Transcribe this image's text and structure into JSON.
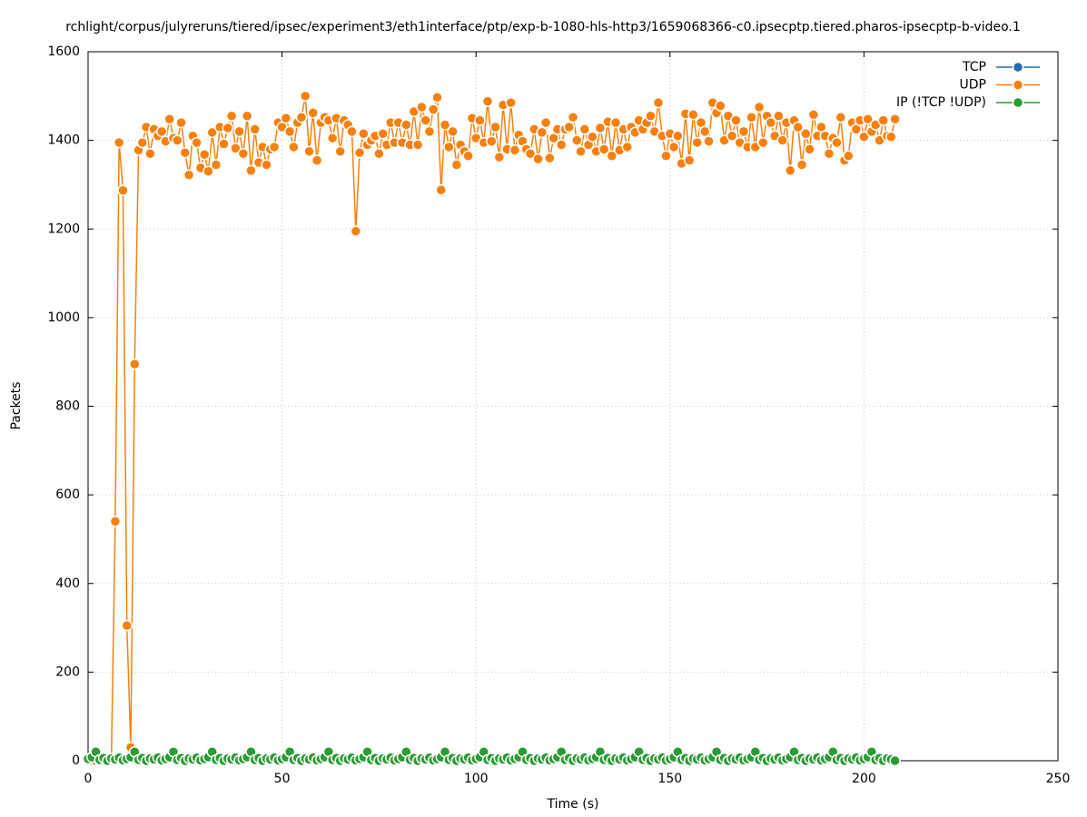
{
  "chart_data": {
    "type": "line",
    "title": "rchlight/corpus/julyreruns/tiered/ipsec/experiment3/eth1interface/ptp/exp-b-1080-hls-http3/1659068366-c0.ipsecptp.tiered.pharos-ipsecptp-b-video.1",
    "xlabel": "Time (s)",
    "ylabel": "Packets",
    "xlim": [
      0,
      250
    ],
    "xticks": [
      0,
      50,
      100,
      150,
      200,
      250
    ],
    "ylim": [
      0,
      1600
    ],
    "yticks": [
      0,
      200,
      400,
      600,
      800,
      1000,
      1200,
      1400,
      1600
    ],
    "grid": true,
    "legend": "upper right",
    "x": [
      0,
      1,
      2,
      3,
      4,
      5,
      6,
      7,
      8,
      9,
      10,
      11,
      12,
      13,
      14,
      15,
      16,
      17,
      18,
      19,
      20,
      21,
      22,
      23,
      24,
      25,
      26,
      27,
      28,
      29,
      30,
      31,
      32,
      33,
      34,
      35,
      36,
      37,
      38,
      39,
      40,
      41,
      42,
      43,
      44,
      45,
      46,
      47,
      48,
      49,
      50,
      51,
      52,
      53,
      54,
      55,
      56,
      57,
      58,
      59,
      60,
      61,
      62,
      63,
      64,
      65,
      66,
      67,
      68,
      69,
      70,
      71,
      72,
      73,
      74,
      75,
      76,
      77,
      78,
      79,
      80,
      81,
      82,
      83,
      84,
      85,
      86,
      87,
      88,
      89,
      90,
      91,
      92,
      93,
      94,
      95,
      96,
      97,
      98,
      99,
      100,
      101,
      102,
      103,
      104,
      105,
      106,
      107,
      108,
      109,
      110,
      111,
      112,
      113,
      114,
      115,
      116,
      117,
      118,
      119,
      120,
      121,
      122,
      123,
      124,
      125,
      126,
      127,
      128,
      129,
      130,
      131,
      132,
      133,
      134,
      135,
      136,
      137,
      138,
      139,
      140,
      141,
      142,
      143,
      144,
      145,
      146,
      147,
      148,
      149,
      150,
      151,
      152,
      153,
      154,
      155,
      156,
      157,
      158,
      159,
      160,
      161,
      162,
      163,
      164,
      165,
      166,
      167,
      168,
      169,
      170,
      171,
      172,
      173,
      174,
      175,
      176,
      177,
      178,
      179,
      180,
      181,
      182,
      183,
      184,
      185,
      186,
      187,
      188,
      189,
      190,
      191,
      192,
      193,
      194,
      195,
      196,
      197,
      198,
      199,
      200,
      201,
      202,
      203,
      204,
      205,
      206,
      207,
      208
    ],
    "series": [
      {
        "name": "TCP",
        "color": "#1f6fb4",
        "values": [
          null,
          null,
          null,
          null,
          null,
          null,
          null,
          null,
          null,
          null,
          null,
          null,
          null,
          null,
          null,
          null,
          null,
          null,
          null,
          null,
          null,
          null,
          null,
          null,
          null,
          null,
          null,
          null,
          null,
          null,
          null,
          null,
          null,
          null,
          null,
          null,
          null,
          null,
          null,
          null,
          null,
          null,
          null,
          null,
          null,
          null,
          null,
          null,
          null,
          null,
          null,
          null,
          null,
          null,
          null,
          null,
          null,
          null,
          null,
          null,
          null,
          null,
          null,
          null,
          null,
          null,
          null,
          null,
          null,
          null,
          null,
          null,
          null,
          null,
          null,
          null,
          null,
          null,
          null,
          null,
          null,
          null,
          null,
          null,
          null,
          null,
          null,
          null,
          null,
          null,
          null,
          null,
          null,
          null,
          null,
          null,
          null,
          null,
          null,
          null,
          null,
          null,
          null,
          null,
          null,
          null,
          null,
          null,
          null,
          null,
          null,
          null,
          null,
          null,
          null,
          null,
          null,
          null,
          null,
          null,
          null,
          null,
          null,
          null,
          null,
          null,
          null,
          null,
          null,
          null,
          null,
          null,
          null,
          null,
          null,
          null,
          null,
          null,
          null,
          null,
          null,
          null,
          null,
          null,
          null,
          null,
          null,
          null,
          null,
          null,
          null,
          null,
          null,
          null,
          null,
          null,
          null,
          null,
          null,
          null,
          null,
          null,
          null,
          null,
          null,
          null,
          null,
          null,
          null,
          null,
          null,
          null,
          null,
          null,
          null,
          null,
          null,
          null,
          null,
          null,
          null,
          null,
          null,
          null,
          null,
          null,
          null,
          null,
          null,
          null,
          null,
          null,
          null,
          null,
          null,
          null,
          null,
          null,
          null,
          null,
          null,
          null,
          null,
          null,
          null,
          null,
          null,
          null,
          null
        ]
      },
      {
        "name": "UDP",
        "color": "#f7800f",
        "values": [
          0,
          0,
          0,
          0,
          0,
          0,
          0,
          540,
          1395,
          1287,
          305,
          30,
          895,
          1378,
          1395,
          1430,
          1370,
          1425,
          1410,
          1420,
          1398,
          1448,
          1405,
          1400,
          1440,
          1372,
          1322,
          1410,
          1395,
          1338,
          1368,
          1330,
          1418,
          1345,
          1430,
          1392,
          1428,
          1455,
          1382,
          1420,
          1370,
          1455,
          1332,
          1425,
          1350,
          1385,
          1345,
          1380,
          1385,
          1440,
          1430,
          1450,
          1420,
          1385,
          1440,
          1452,
          1500,
          1375,
          1462,
          1355,
          1440,
          1452,
          1445,
          1405,
          1450,
          1375,
          1445,
          1435,
          1420,
          1195,
          1372,
          1415,
          1390,
          1400,
          1410,
          1370,
          1415,
          1390,
          1440,
          1395,
          1440,
          1395,
          1435,
          1390,
          1465,
          1390,
          1475,
          1445,
          1420,
          1470,
          1497,
          1288,
          1435,
          1385,
          1420,
          1345,
          1390,
          1375,
          1365,
          1450,
          1405,
          1445,
          1395,
          1488,
          1398,
          1430,
          1362,
          1480,
          1380,
          1485,
          1378,
          1412,
          1398,
          1380,
          1370,
          1425,
          1358,
          1418,
          1440,
          1360,
          1405,
          1425,
          1390,
          1425,
          1430,
          1452,
          1400,
          1375,
          1425,
          1390,
          1408,
          1375,
          1428,
          1380,
          1442,
          1365,
          1440,
          1378,
          1425,
          1385,
          1430,
          1418,
          1445,
          1425,
          1440,
          1455,
          1420,
          1485,
          1410,
          1365,
          1415,
          1385,
          1410,
          1348,
          1460,
          1355,
          1458,
          1395,
          1440,
          1420,
          1398,
          1485,
          1462,
          1478,
          1400,
          1455,
          1410,
          1445,
          1395,
          1420,
          1385,
          1452,
          1385,
          1475,
          1395,
          1455,
          1440,
          1410,
          1455,
          1400,
          1440,
          1332,
          1445,
          1430,
          1345,
          1415,
          1380,
          1458,
          1410,
          1430,
          1410,
          1370,
          1405,
          1395,
          1452,
          1355,
          1365,
          1440,
          1425,
          1445,
          1408,
          1448,
          1420,
          1435,
          1400,
          1445,
          1410,
          1408,
          1448
        ]
      },
      {
        "name": "IP (!TCP  !UDP)",
        "color": "#2b9b34",
        "values": [
          4,
          8,
          20,
          2,
          6,
          0,
          5,
          3,
          7,
          1,
          4,
          8,
          20,
          2,
          6,
          0,
          5,
          3,
          7,
          1,
          4,
          8,
          20,
          2,
          6,
          0,
          5,
          3,
          7,
          1,
          4,
          8,
          20,
          2,
          6,
          0,
          5,
          3,
          7,
          1,
          4,
          8,
          20,
          2,
          6,
          0,
          5,
          3,
          7,
          1,
          4,
          8,
          20,
          2,
          6,
          0,
          5,
          3,
          7,
          1,
          4,
          8,
          20,
          2,
          6,
          0,
          5,
          3,
          7,
          1,
          4,
          8,
          20,
          2,
          6,
          0,
          5,
          3,
          7,
          1,
          4,
          8,
          20,
          2,
          6,
          0,
          5,
          3,
          7,
          1,
          4,
          8,
          20,
          2,
          6,
          0,
          5,
          3,
          7,
          1,
          4,
          8,
          20,
          2,
          6,
          0,
          5,
          3,
          7,
          1,
          4,
          8,
          20,
          2,
          6,
          0,
          5,
          3,
          7,
          1,
          4,
          8,
          20,
          2,
          6,
          0,
          5,
          3,
          7,
          1,
          4,
          8,
          20,
          2,
          6,
          0,
          5,
          3,
          7,
          1,
          4,
          8,
          20,
          2,
          6,
          0,
          5,
          3,
          7,
          1,
          4,
          8,
          20,
          2,
          6,
          0,
          5,
          3,
          7,
          1,
          4,
          8,
          20,
          2,
          6,
          0,
          5,
          3,
          7,
          1,
          4,
          8,
          20,
          2,
          6,
          0,
          5,
          3,
          7,
          1,
          4,
          8,
          20,
          2,
          6,
          0,
          5,
          3,
          7,
          1,
          4,
          8,
          20,
          2,
          6,
          0,
          5,
          3,
          7,
          1,
          4,
          8,
          20,
          2,
          6,
          0,
          5,
          3,
          0
        ]
      }
    ]
  }
}
